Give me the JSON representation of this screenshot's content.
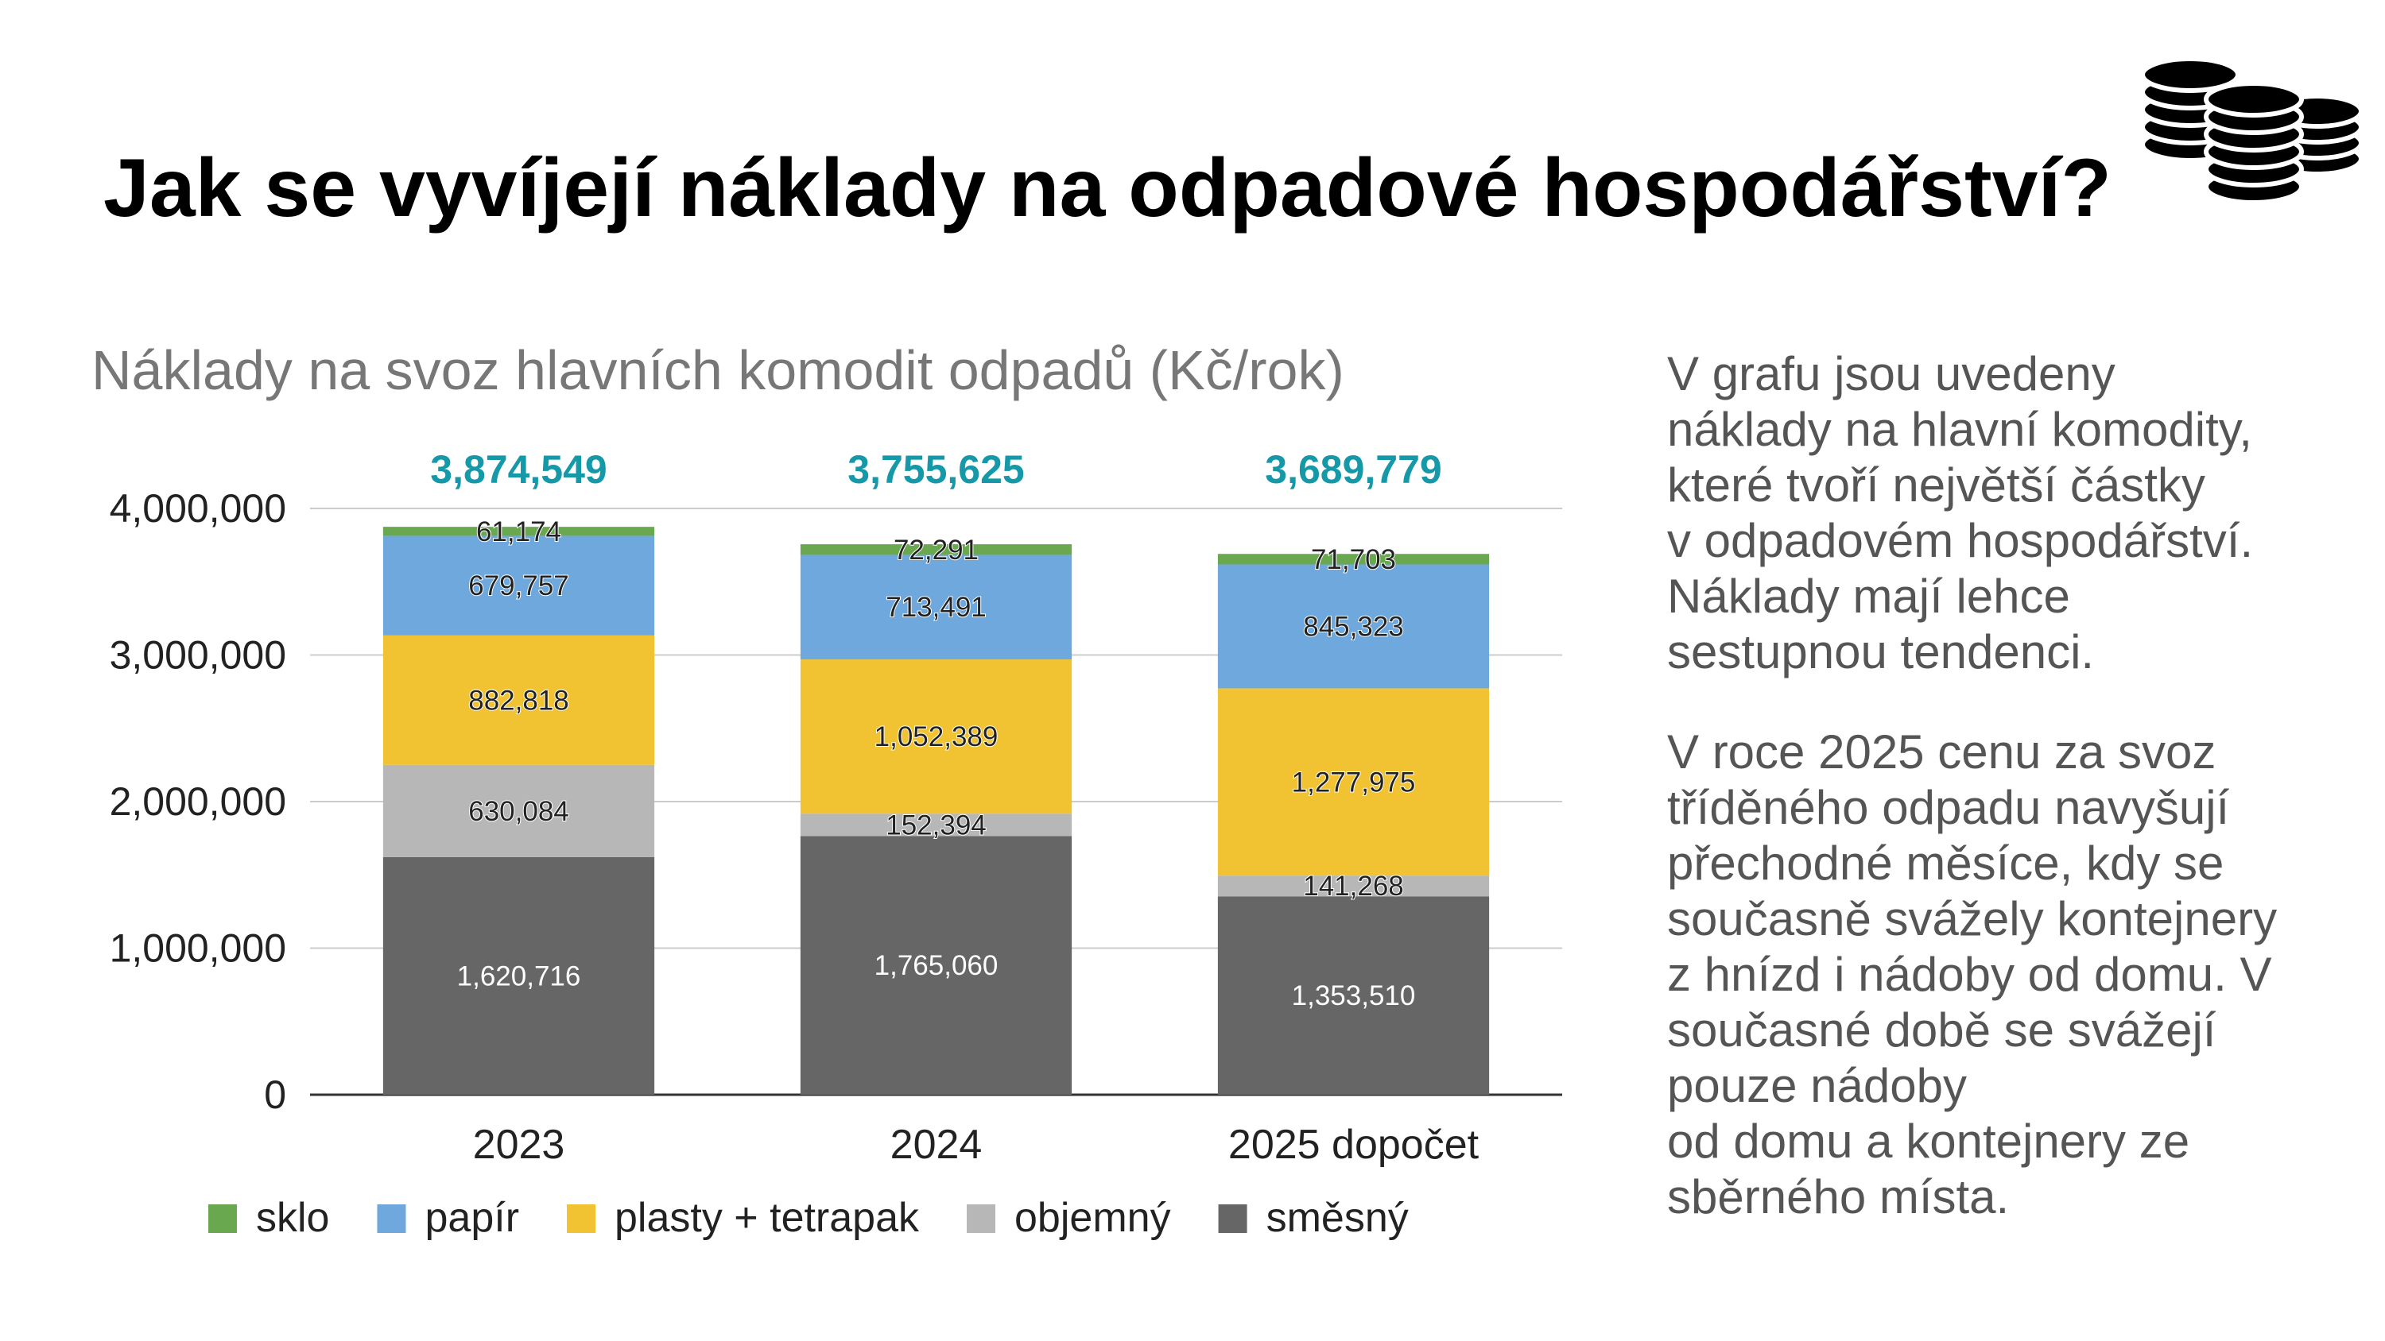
{
  "slide": {
    "title": "Jak se vyvíjejí náklady na odpadové hospodářství?"
  },
  "side_text": {
    "paragraph1": "V grafu jsou uvedeny\nnáklady na hlavní komodity,\nkteré tvoří největší částky\nv odpadovém hospodářství.\nNáklady mají lehce\nsestupnou tendenci.",
    "paragraph2": "V roce 2025 cenu za svoz\ntříděného odpadu navyšují\npřechodné měsíce, kdy se\nsoučasně svážely kontejnery\nz hnízd i nádoby od domu. V\nsoučasné době se svážejí\npouze nádoby\nod domu a kontejnery ze\nsběrného místa."
  },
  "icons": {
    "coins": "coins-icon"
  },
  "chart_data": {
    "type": "bar",
    "stacked": true,
    "title": "Náklady na svoz hlavních komodit odpadů (Kč/rok)",
    "categories": [
      "2023",
      "2024",
      "2025 dopočet"
    ],
    "totals": [
      3874549,
      3755625,
      3689779
    ],
    "totals_labels": [
      "3,874,549",
      "3,755,625",
      "3,689,779"
    ],
    "ylim": [
      0,
      4000000
    ],
    "yticks": [
      0,
      1000000,
      2000000,
      3000000,
      4000000
    ],
    "ytick_labels": [
      "0",
      "1,000,000",
      "2,000,000",
      "3,000,000",
      "4,000,000"
    ],
    "grid": true,
    "legend_position": "bottom",
    "legend_order": [
      "sklo",
      "papír",
      "plasty + tetrapak",
      "objemný",
      "směsný"
    ],
    "series": [
      {
        "name": "směsný",
        "color": "#666666",
        "label_color": "#ffffff",
        "values": [
          1620716,
          1765060,
          1353510
        ],
        "labels": [
          "1,620,716",
          "1,765,060",
          "1,353,510"
        ]
      },
      {
        "name": "objemný",
        "color": "#b7b7b7",
        "label_color": "#222222",
        "values": [
          630084,
          152394,
          141268
        ],
        "labels": [
          "630,084",
          "152,394",
          "141,268"
        ]
      },
      {
        "name": "plasty + tetrapak",
        "color": "#f1c232",
        "label_color": "#222222",
        "values": [
          882818,
          1052389,
          1277975
        ],
        "labels": [
          "882,818",
          "1,052,389",
          "1,277,975"
        ]
      },
      {
        "name": "papír",
        "color": "#6fa8dc",
        "label_color": "#222222",
        "values": [
          679757,
          713491,
          845323
        ],
        "labels": [
          "679,757",
          "713,491",
          "845,323"
        ]
      },
      {
        "name": "sklo",
        "color": "#6aa84f",
        "label_color": "#222222",
        "values": [
          61174,
          72291,
          71703
        ],
        "labels": [
          "61,174",
          "72,291",
          "71,703"
        ]
      }
    ]
  }
}
